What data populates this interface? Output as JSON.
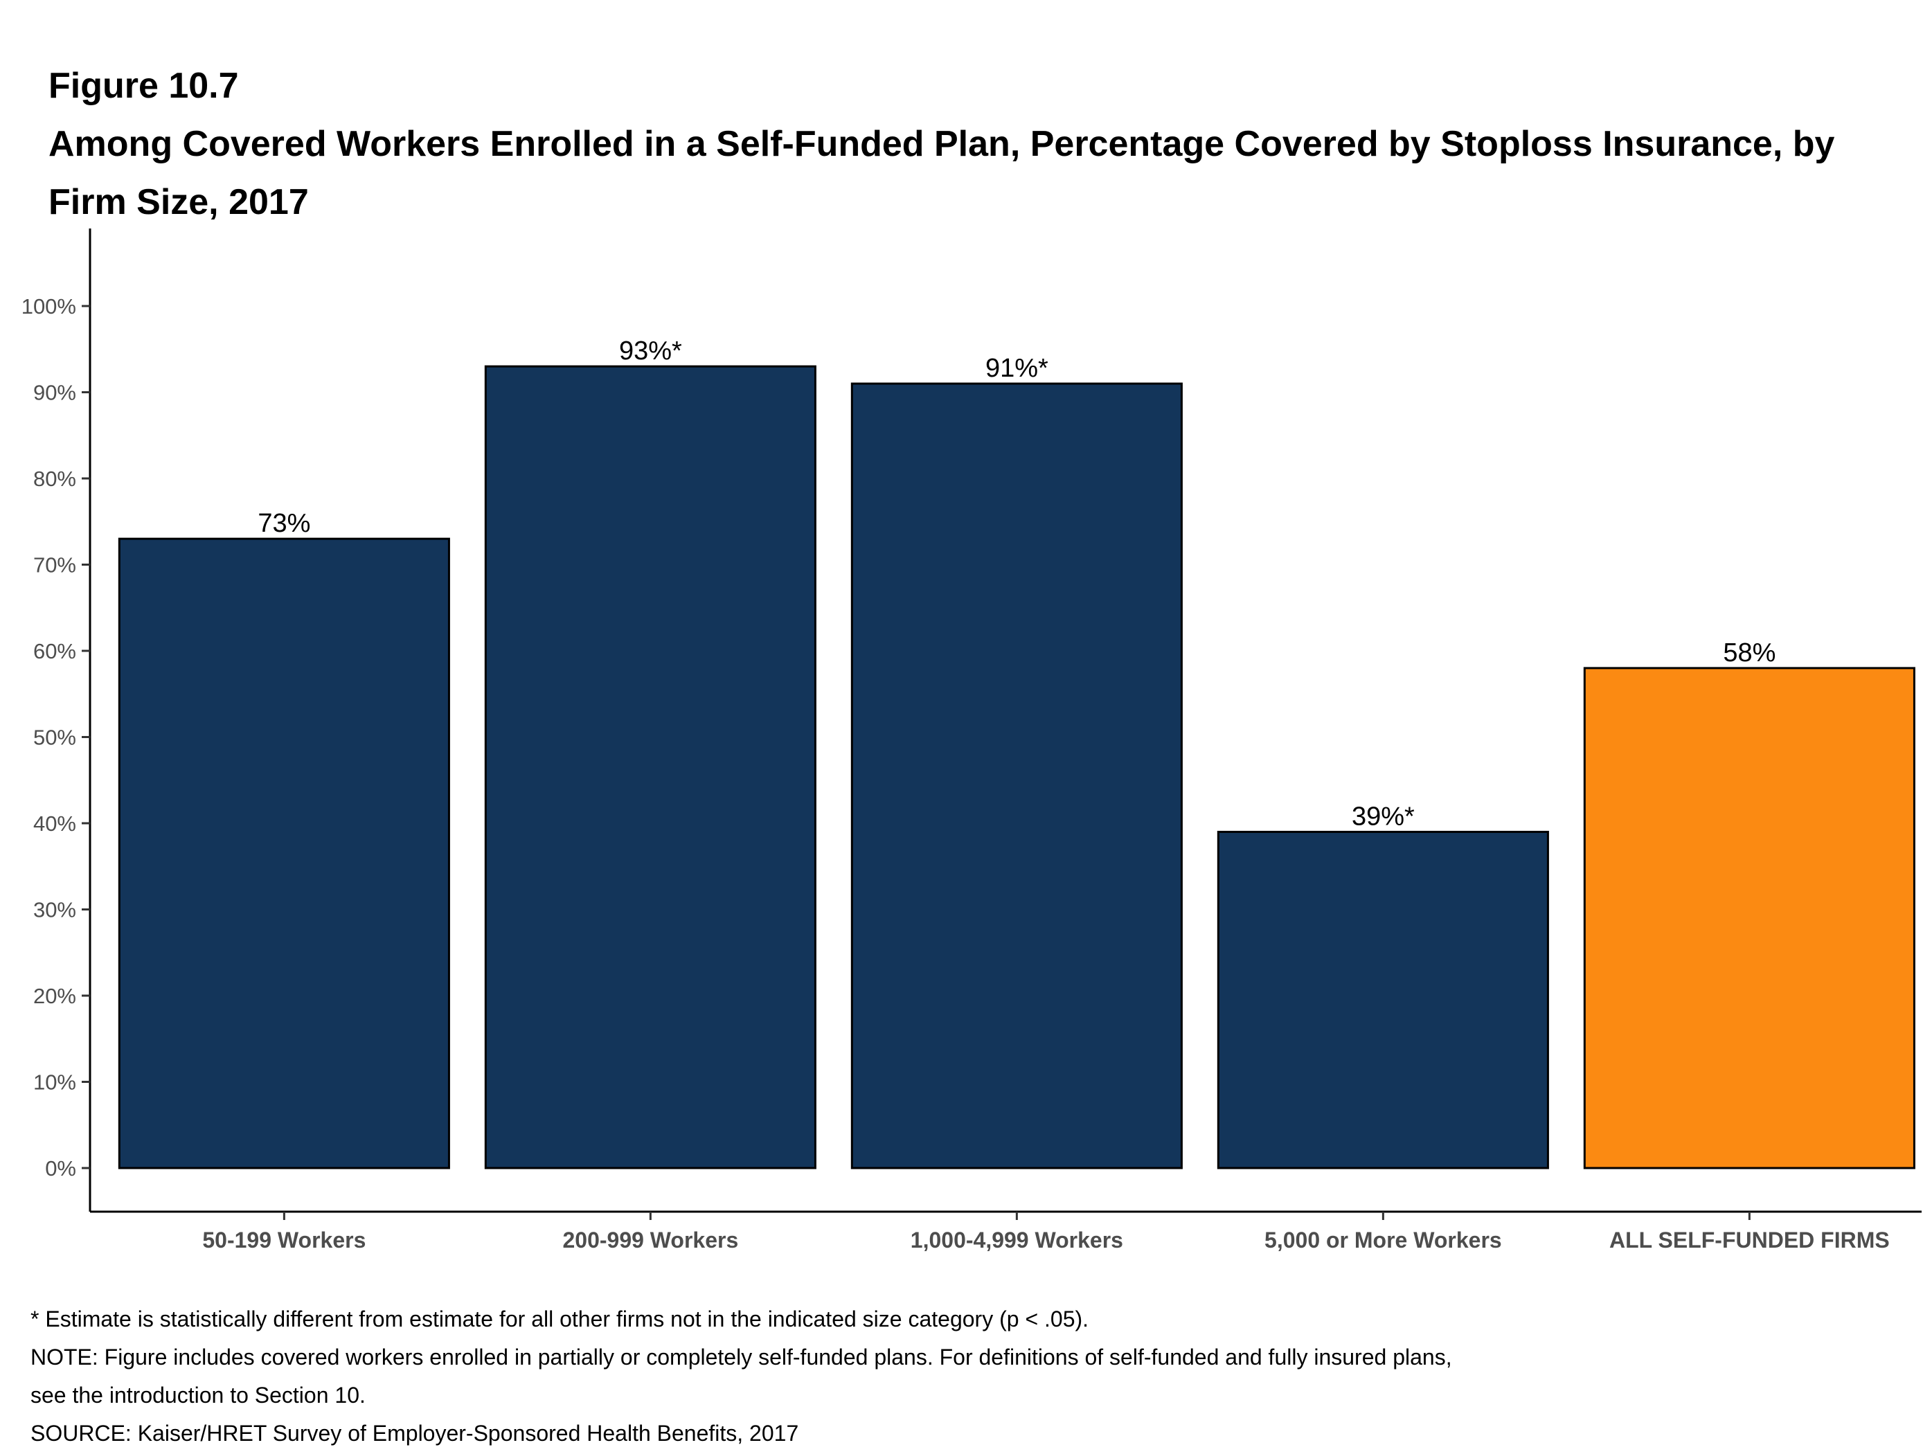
{
  "header": {
    "figure_label": "Figure 10.7",
    "title": "Among Covered Workers Enrolled in a Self-Funded Plan, Percentage Covered by Stoploss Insurance, by Firm Size, 2017"
  },
  "chart_data": {
    "type": "bar",
    "title": "Among Covered Workers Enrolled in a Self-Funded Plan, Percentage Covered by Stoploss Insurance, by Firm Size, 2017",
    "categories": [
      "50-199 Workers",
      "200-999 Workers",
      "1,000-4,999 Workers",
      "5,000 or More Workers",
      "ALL SELF-FUNDED FIRMS"
    ],
    "values": [
      73,
      93,
      91,
      39,
      58
    ],
    "data_labels": [
      "73%",
      "93%*",
      "91%*",
      "39%*",
      "58%"
    ],
    "colors": [
      "#13355a",
      "#13355a",
      "#13355a",
      "#13355a",
      "#fb8a12"
    ],
    "xlabel": "",
    "ylabel": "",
    "ylim": [
      -5,
      105
    ],
    "yticks": [
      0,
      10,
      20,
      30,
      40,
      50,
      60,
      70,
      80,
      90,
      100
    ],
    "ytick_labels": [
      "0%",
      "10%",
      "20%",
      "30%",
      "40%",
      "50%",
      "60%",
      "70%",
      "80%",
      "90%",
      "100%"
    ],
    "grid": false,
    "legend": "none"
  },
  "footnotes": {
    "significance": "* Estimate is statistically different from estimate for all other firms not in the indicated size category (p < .05).",
    "note_line1": "NOTE: Figure includes covered workers enrolled in partially or completely self-funded plans. For definitions of self-funded and fully insured plans,",
    "note_line2": "see the introduction to Section 10.",
    "source": "SOURCE: Kaiser/HRET Survey of Employer-Sponsored Health Benefits, 2017"
  }
}
